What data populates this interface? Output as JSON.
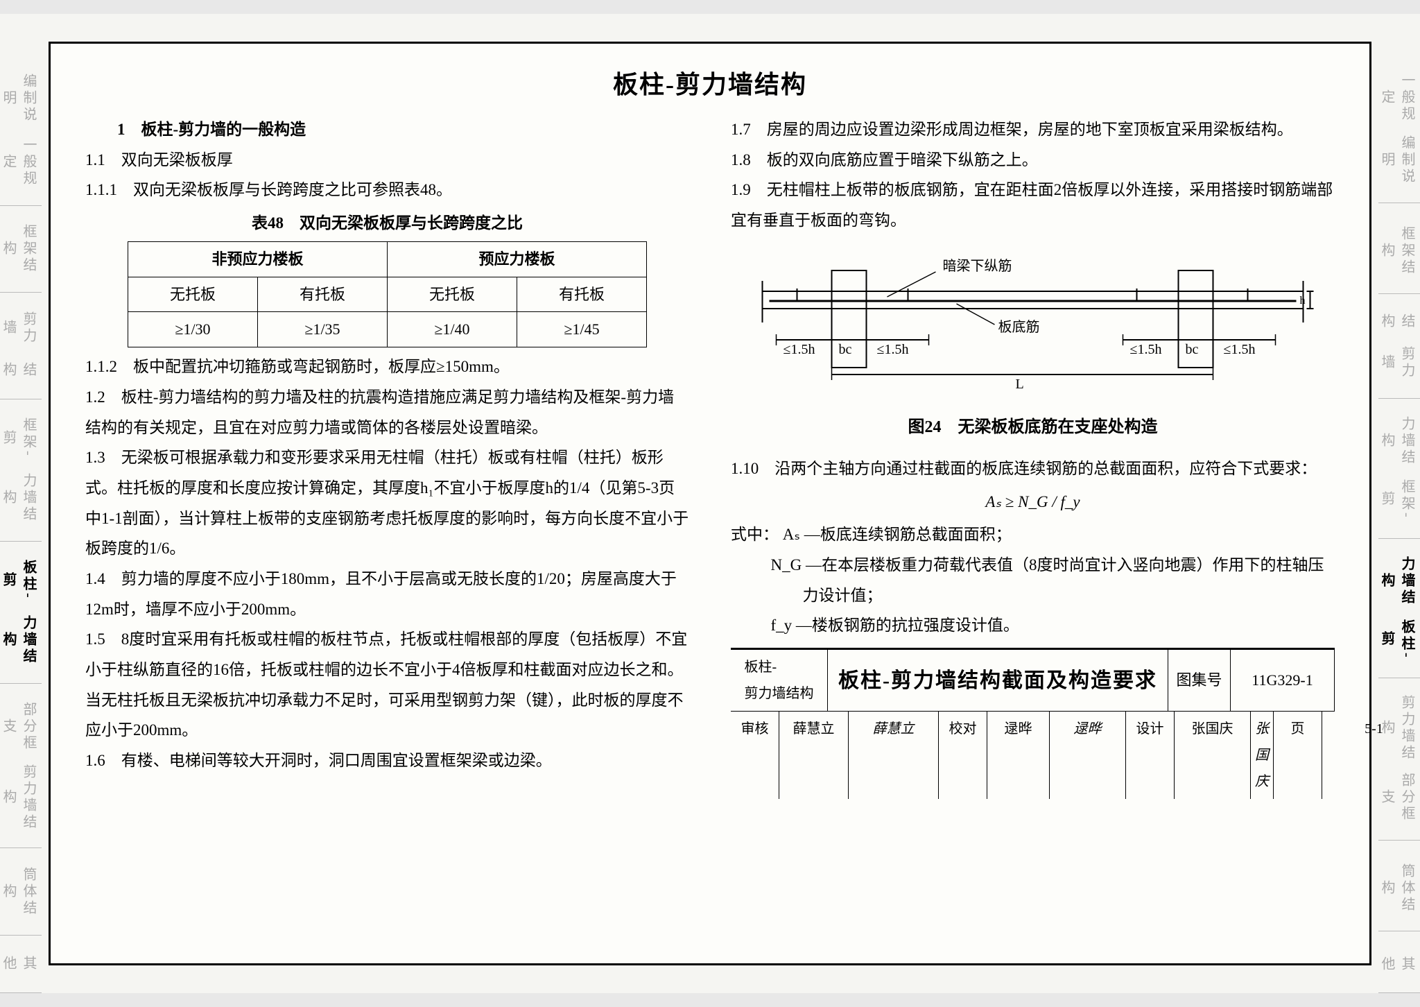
{
  "side_tabs_left": [
    {
      "a": "编制说明",
      "b": "一般规定",
      "active": false
    },
    {
      "a": "框架结构",
      "b": "",
      "active": false
    },
    {
      "a": "剪力墙",
      "b": "结构",
      "active": false
    },
    {
      "a": "框架-剪",
      "b": "力墙结构",
      "active": false
    },
    {
      "a": "板柱-剪",
      "b": "力墙结构",
      "active": true
    },
    {
      "a": "部分框支",
      "b": "剪力墙结构",
      "active": false
    },
    {
      "a": "筒体结构",
      "b": "",
      "active": false
    },
    {
      "a": "其他",
      "b": "",
      "active": false
    }
  ],
  "side_tabs_right": [
    {
      "a": "一般规定",
      "b": "编制说明",
      "active": false
    },
    {
      "a": "",
      "b": "框架结构",
      "active": false
    },
    {
      "a": "结构",
      "b": "剪力墙",
      "active": false
    },
    {
      "a": "力墙结构",
      "b": "框架-剪",
      "active": false
    },
    {
      "a": "力墙结构",
      "b": "板柱-剪",
      "active": true
    },
    {
      "a": "剪力墙结构",
      "b": "部分框支",
      "active": false
    },
    {
      "a": "",
      "b": "筒体结构",
      "active": false
    },
    {
      "a": "",
      "b": "其他",
      "active": false
    }
  ],
  "title": "板柱-剪力墙结构",
  "left": {
    "s1": "1　板柱-剪力墙的一般构造",
    "s11": "1.1　双向无梁板板厚",
    "s111": "1.1.1　双向无梁板板厚与长跨跨度之比可参照表48。",
    "table48_caption": "表48　双向无梁板板厚与长跨跨度之比",
    "table48": {
      "head1": [
        "非预应力楼板",
        "预应力楼板"
      ],
      "head2": [
        "无托板",
        "有托板",
        "无托板",
        "有托板"
      ],
      "row": [
        "≥1/30",
        "≥1/35",
        "≥1/40",
        "≥1/45"
      ]
    },
    "s112": "1.1.2　板中配置抗冲切箍筋或弯起钢筋时，板厚应≥150mm。",
    "s12": "1.2　板柱-剪力墙结构的剪力墙及柱的抗震构造措施应满足剪力墙结构及框架-剪力墙结构的有关规定，且宜在对应剪力墙或筒体的各楼层处设置暗梁。",
    "s13": "1.3　无梁板可根据承载力和变形要求采用无柱帽（柱托）板或有柱帽（柱托）板形式。柱托板的厚度和长度应按计算确定，其厚度h₁不宜小于板厚度h的1/4（见第5-3页中1-1剖面），当计算柱上板带的支座钢筋考虑托板厚度的影响时，每方向长度不宜小于板跨度的1/6。",
    "s14": "1.4　剪力墙的厚度不应小于180mm，且不小于层高或无肢长度的1/20；房屋高度大于12m时，墙厚不应小于200mm。",
    "s15": "1.5　8度时宜采用有托板或柱帽的板柱节点，托板或柱帽根部的厚度（包括板厚）不宜小于柱纵筋直径的16倍，托板或柱帽的边长不宜小于4倍板厚和柱截面对应边长之和。当无柱托板且无梁板抗冲切承载力不足时，可采用型钢剪力架（键），此时板的厚度不应小于200mm。",
    "s16": "1.6　有楼、电梯间等较大开洞时，洞口周围宜设置框架梁或边梁。"
  },
  "right": {
    "s17": "1.7　房屋的周边应设置边梁形成周边框架，房屋的地下室顶板宜采用梁板结构。",
    "s18": "1.8　板的双向底筋应置于暗梁下纵筋之上。",
    "s19": "1.9　无柱帽柱上板带的板底钢筋，宜在距柱面2倍板厚以外连接，采用搭接时钢筋端部宜有垂直于板面的弯钩。",
    "fig24_caption": "图24　无梁板板底筋在支座处构造",
    "diagram_labels": {
      "top": "暗梁下纵筋",
      "bottom": "板底筋",
      "d1": "≤1.5h",
      "bc": "bc",
      "d2": "≤1.5h",
      "d3": "≤1.5h",
      "d4": "≤1.5h",
      "L": "L",
      "h": "h"
    },
    "s110a": "1.10　沿两个主轴方向通过柱截面的板底连续钢筋的总截面面积，应符合下式要求：",
    "formula": "Aₛ ≥ N_G / f_y",
    "where_label": "式中：",
    "where1": "Aₛ —板底连续钢筋总截面面积；",
    "where2": "N_G —在本层楼板重力荷载代表值（8度时尚宜计入竖向地震）作用下的柱轴压力设计值；",
    "where3": "f_y —楼板钢筋的抗拉强度设计值。"
  },
  "titleblock": {
    "category": "板柱-\n剪力墙结构",
    "name": "板柱-剪力墙结构截面及构造要求",
    "setlabel": "图集号",
    "setno": "11G329-1",
    "row2": [
      "审核",
      "薛慧立",
      "薛慧立",
      "校对",
      "逯晔",
      "逯晔",
      "设计",
      "张国庆",
      "张国庆",
      "页",
      "5-1"
    ]
  },
  "colors": {
    "border": "#000000",
    "bg": "#f5f5f2",
    "muted": "#aaaaaa"
  }
}
